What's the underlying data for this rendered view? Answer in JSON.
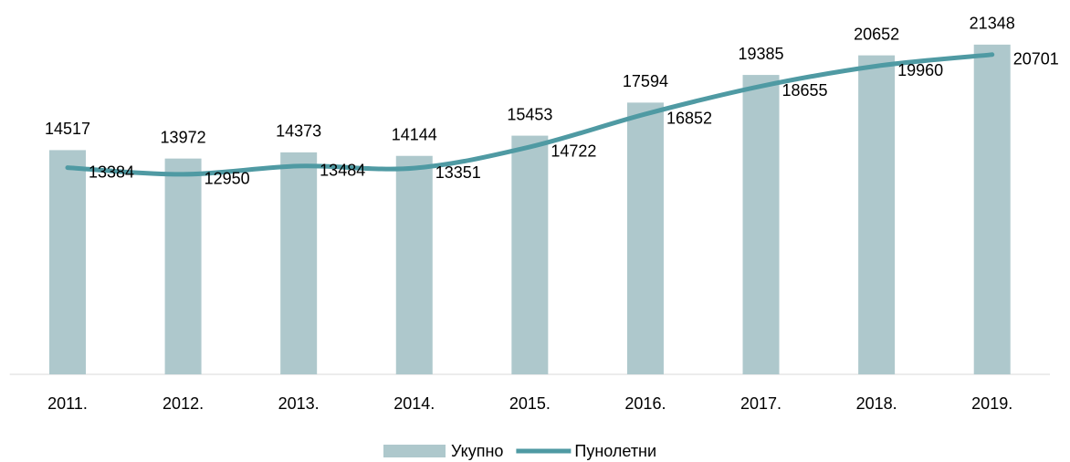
{
  "chart_data": {
    "type": "bar",
    "categories": [
      "2011.",
      "2012.",
      "2013.",
      "2014.",
      "2015.",
      "2016.",
      "2017.",
      "2018.",
      "2019."
    ],
    "series": [
      {
        "name": "Укупно",
        "type": "bar",
        "color": "#aec8cc",
        "values": [
          14517,
          13972,
          14373,
          14144,
          15453,
          17594,
          19385,
          20652,
          21348
        ]
      },
      {
        "name": "Пунолетни",
        "type": "line",
        "color": "#4f9aa3",
        "values": [
          13384,
          12950,
          13484,
          13351,
          14722,
          16852,
          18655,
          19960,
          20701
        ]
      }
    ],
    "ylim": [
      0,
      24000
    ],
    "legend": "bottom"
  }
}
